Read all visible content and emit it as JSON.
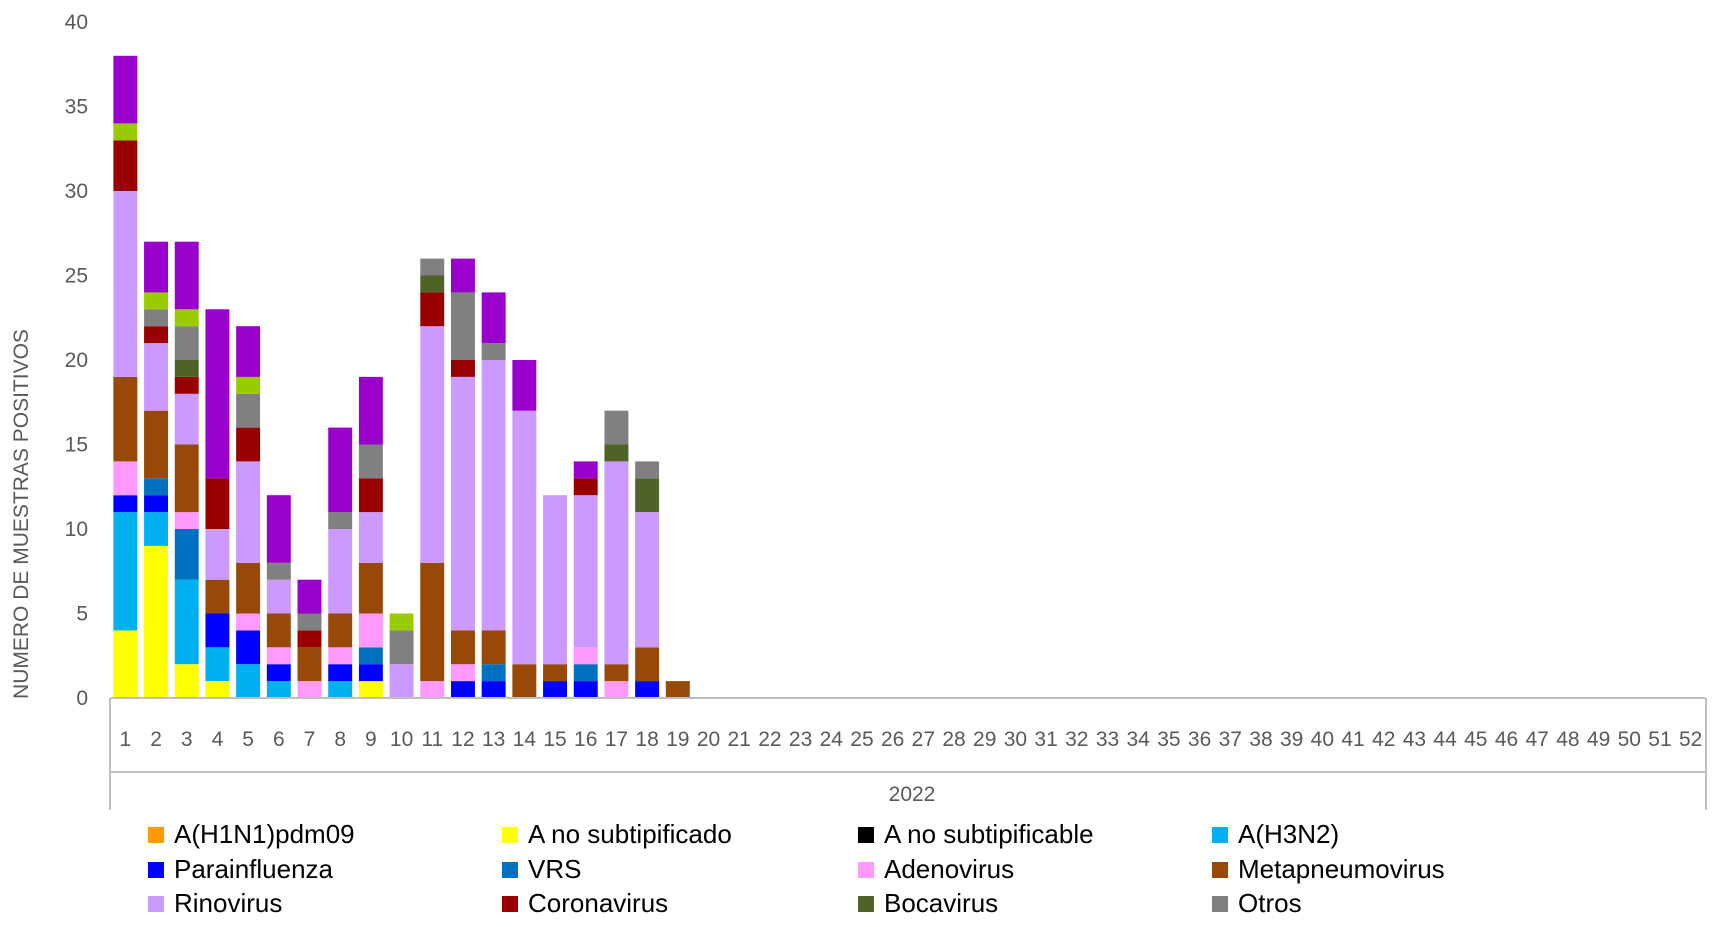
{
  "chart_data": {
    "type": "bar",
    "stacked": true,
    "title": "",
    "ylabel": "NUMERO DE MUESTRAS POSITIVOS",
    "xgroup_label": "2022",
    "ylim": [
      0,
      40
    ],
    "yticks": [
      0,
      5,
      10,
      15,
      20,
      25,
      30,
      35,
      40
    ],
    "grid": false,
    "legend_position": "bottom",
    "categories": [
      "1",
      "2",
      "3",
      "4",
      "5",
      "6",
      "7",
      "8",
      "9",
      "10",
      "11",
      "12",
      "13",
      "14",
      "15",
      "16",
      "17",
      "18",
      "19",
      "20",
      "21",
      "22",
      "23",
      "24",
      "25",
      "26",
      "27",
      "28",
      "29",
      "30",
      "31",
      "32",
      "33",
      "34",
      "35",
      "36",
      "37",
      "38",
      "39",
      "40",
      "41",
      "42",
      "43",
      "44",
      "45",
      "46",
      "47",
      "48",
      "49",
      "50",
      "51",
      "52"
    ],
    "series": [
      {
        "name": "A(H1N1)pdm09",
        "color": "#ff9900",
        "values": [
          0,
          0,
          0,
          0,
          0,
          0,
          0,
          0,
          0,
          0,
          0,
          0,
          0,
          0,
          0,
          0,
          0,
          0,
          0,
          0,
          0,
          0,
          0,
          0,
          0,
          0,
          0,
          0,
          0,
          0,
          0,
          0,
          0,
          0,
          0,
          0,
          0,
          0,
          0,
          0,
          0,
          0,
          0,
          0,
          0,
          0,
          0,
          0,
          0,
          0,
          0,
          0
        ]
      },
      {
        "name": "A no subtipificado",
        "color": "#ffff00",
        "values": [
          4,
          9,
          2,
          1,
          0,
          0,
          0,
          0,
          1,
          0,
          0,
          0,
          0,
          0,
          0,
          0,
          0,
          0,
          0,
          0,
          0,
          0,
          0,
          0,
          0,
          0,
          0,
          0,
          0,
          0,
          0,
          0,
          0,
          0,
          0,
          0,
          0,
          0,
          0,
          0,
          0,
          0,
          0,
          0,
          0,
          0,
          0,
          0,
          0,
          0,
          0,
          0
        ]
      },
      {
        "name": "A no subtipificable",
        "color": "#000000",
        "values": [
          0,
          0,
          0,
          0,
          0,
          0,
          0,
          0,
          0,
          0,
          0,
          0,
          0,
          0,
          0,
          0,
          0,
          0,
          0,
          0,
          0,
          0,
          0,
          0,
          0,
          0,
          0,
          0,
          0,
          0,
          0,
          0,
          0,
          0,
          0,
          0,
          0,
          0,
          0,
          0,
          0,
          0,
          0,
          0,
          0,
          0,
          0,
          0,
          0,
          0,
          0,
          0
        ]
      },
      {
        "name": "A(H3N2)",
        "color": "#00b0f0",
        "values": [
          7,
          2,
          5,
          2,
          2,
          1,
          0,
          1,
          0,
          0,
          0,
          0,
          0,
          0,
          0,
          0,
          0,
          0,
          0,
          0,
          0,
          0,
          0,
          0,
          0,
          0,
          0,
          0,
          0,
          0,
          0,
          0,
          0,
          0,
          0,
          0,
          0,
          0,
          0,
          0,
          0,
          0,
          0,
          0,
          0,
          0,
          0,
          0,
          0,
          0,
          0,
          0
        ]
      },
      {
        "name": "Parainfluenza",
        "color": "#0000ff",
        "values": [
          1,
          1,
          0,
          2,
          2,
          1,
          0,
          1,
          1,
          0,
          0,
          1,
          1,
          0,
          1,
          1,
          0,
          1,
          0,
          0,
          0,
          0,
          0,
          0,
          0,
          0,
          0,
          0,
          0,
          0,
          0,
          0,
          0,
          0,
          0,
          0,
          0,
          0,
          0,
          0,
          0,
          0,
          0,
          0,
          0,
          0,
          0,
          0,
          0,
          0,
          0,
          0
        ]
      },
      {
        "name": "VRS",
        "color": "#0070c0",
        "values": [
          0,
          1,
          3,
          0,
          0,
          0,
          0,
          0,
          1,
          0,
          0,
          0,
          1,
          0,
          0,
          1,
          0,
          0,
          0,
          0,
          0,
          0,
          0,
          0,
          0,
          0,
          0,
          0,
          0,
          0,
          0,
          0,
          0,
          0,
          0,
          0,
          0,
          0,
          0,
          0,
          0,
          0,
          0,
          0,
          0,
          0,
          0,
          0,
          0,
          0,
          0,
          0
        ]
      },
      {
        "name": "Adenovirus",
        "color": "#ff99ff",
        "values": [
          2,
          0,
          1,
          0,
          1,
          1,
          1,
          1,
          2,
          0,
          1,
          1,
          0,
          0,
          0,
          1,
          1,
          0,
          0,
          0,
          0,
          0,
          0,
          0,
          0,
          0,
          0,
          0,
          0,
          0,
          0,
          0,
          0,
          0,
          0,
          0,
          0,
          0,
          0,
          0,
          0,
          0,
          0,
          0,
          0,
          0,
          0,
          0,
          0,
          0,
          0,
          0
        ]
      },
      {
        "name": "Metapneumovirus",
        "color": "#984807",
        "values": [
          5,
          4,
          4,
          2,
          3,
          2,
          2,
          2,
          3,
          0,
          7,
          2,
          2,
          2,
          1,
          0,
          1,
          2,
          1,
          0,
          0,
          0,
          0,
          0,
          0,
          0,
          0,
          0,
          0,
          0,
          0,
          0,
          0,
          0,
          0,
          0,
          0,
          0,
          0,
          0,
          0,
          0,
          0,
          0,
          0,
          0,
          0,
          0,
          0,
          0,
          0,
          0
        ]
      },
      {
        "name": "Rinovirus",
        "color": "#cc99ff",
        "values": [
          11,
          4,
          3,
          3,
          6,
          2,
          0,
          5,
          3,
          2,
          14,
          15,
          16,
          15,
          10,
          9,
          12,
          8,
          0,
          0,
          0,
          0,
          0,
          0,
          0,
          0,
          0,
          0,
          0,
          0,
          0,
          0,
          0,
          0,
          0,
          0,
          0,
          0,
          0,
          0,
          0,
          0,
          0,
          0,
          0,
          0,
          0,
          0,
          0,
          0,
          0,
          0
        ]
      },
      {
        "name": "Coronavirus",
        "color": "#990000",
        "values": [
          3,
          1,
          1,
          3,
          2,
          0,
          1,
          0,
          2,
          0,
          2,
          1,
          0,
          0,
          0,
          1,
          0,
          0,
          0,
          0,
          0,
          0,
          0,
          0,
          0,
          0,
          0,
          0,
          0,
          0,
          0,
          0,
          0,
          0,
          0,
          0,
          0,
          0,
          0,
          0,
          0,
          0,
          0,
          0,
          0,
          0,
          0,
          0,
          0,
          0,
          0,
          0
        ]
      },
      {
        "name": "Bocavirus",
        "color": "#4f6228",
        "values": [
          0,
          0,
          1,
          0,
          0,
          0,
          0,
          0,
          0,
          0,
          1,
          0,
          0,
          0,
          0,
          0,
          1,
          2,
          0,
          0,
          0,
          0,
          0,
          0,
          0,
          0,
          0,
          0,
          0,
          0,
          0,
          0,
          0,
          0,
          0,
          0,
          0,
          0,
          0,
          0,
          0,
          0,
          0,
          0,
          0,
          0,
          0,
          0,
          0,
          0,
          0,
          0
        ]
      },
      {
        "name": "Otros",
        "color": "#808080",
        "values": [
          0,
          1,
          2,
          0,
          2,
          1,
          1,
          1,
          2,
          2,
          1,
          4,
          1,
          0,
          0,
          0,
          2,
          1,
          0,
          0,
          0,
          0,
          0,
          0,
          0,
          0,
          0,
          0,
          0,
          0,
          0,
          0,
          0,
          0,
          0,
          0,
          0,
          0,
          0,
          0,
          0,
          0,
          0,
          0,
          0,
          0,
          0,
          0,
          0,
          0,
          0,
          0
        ]
      },
      {
        "color": "#99cc00",
        "values": [
          1,
          1,
          1,
          0,
          1,
          0,
          0,
          0,
          0,
          1,
          0,
          0,
          0,
          0,
          0,
          0,
          0,
          0,
          0,
          0,
          0,
          0,
          0,
          0,
          0,
          0,
          0,
          0,
          0,
          0,
          0,
          0,
          0,
          0,
          0,
          0,
          0,
          0,
          0,
          0,
          0,
          0,
          0,
          0,
          0,
          0,
          0,
          0,
          0,
          0,
          0,
          0
        ]
      },
      {
        "color": "#9900cc",
        "values": [
          4,
          3,
          4,
          10,
          3,
          4,
          2,
          5,
          4,
          0,
          0,
          2,
          3,
          3,
          0,
          1,
          0,
          0,
          0,
          0,
          0,
          0,
          0,
          0,
          0,
          0,
          0,
          0,
          0,
          0,
          0,
          0,
          0,
          0,
          0,
          0,
          0,
          0,
          0,
          0,
          0,
          0,
          0,
          0,
          0,
          0,
          0,
          0,
          0,
          0,
          0,
          0
        ]
      }
    ]
  }
}
